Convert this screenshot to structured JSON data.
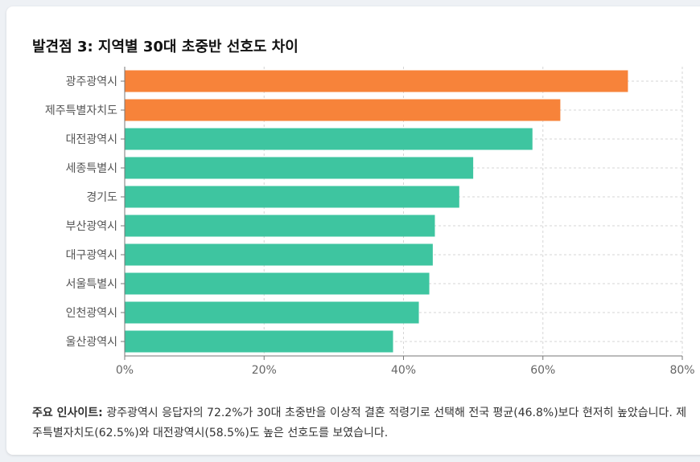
{
  "card": {
    "title": "발견점 3: 지역별 30대 초중반 선호도 차이"
  },
  "chart_data": {
    "type": "bar",
    "orientation": "horizontal",
    "title": "발견점 3: 지역별 30대 초중반 선호도 차이",
    "categories": [
      "광주광역시",
      "제주특별자치도",
      "대전광역시",
      "세종특별시",
      "경기도",
      "부산광역시",
      "대구광역시",
      "서울특별시",
      "인천광역시",
      "울산광역시"
    ],
    "values": [
      72.2,
      62.5,
      58.5,
      50.0,
      48.0,
      44.5,
      44.2,
      43.7,
      42.2,
      38.5
    ],
    "highlight": [
      true,
      true,
      false,
      false,
      false,
      false,
      false,
      false,
      false,
      false
    ],
    "xlim": [
      0,
      80
    ],
    "xticks": [
      0,
      20,
      40,
      60,
      80
    ],
    "tick_suffix": "%",
    "grid": true,
    "colors": {
      "highlight": "#f7833a",
      "normal": "#3ec5a0"
    }
  },
  "insight": {
    "label": "주요 인사이트:",
    "text": " 광주광역시 응답자의 72.2%가 30대 초중반을 이상적 결혼 적령기로 선택해 전국 평균(46.8%)보다 현저히 높았습니다. 제주특별자치도(62.5%)와 대전광역시(58.5%)도 높은 선호도를 보였습니다."
  }
}
